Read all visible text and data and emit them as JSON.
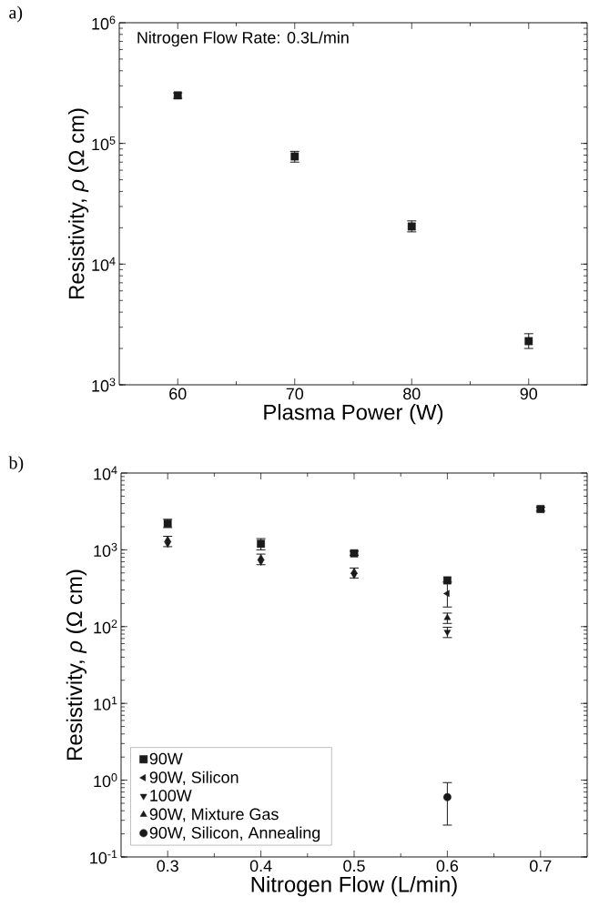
{
  "chart_data": [
    {
      "type": "scatter",
      "title": "a)",
      "xlabel": "Plasma Power (W)",
      "ylabel": "Resistivity, *ρ* (Ω cm)",
      "log": "y",
      "legend": false,
      "annotations": [
        "Nitrogen Flow Rate: 0.3L/min"
      ],
      "xlim": [
        55,
        95
      ],
      "xticks": [
        60,
        70,
        80,
        90
      ],
      "ylim": [
        1000,
        1000000
      ],
      "yticks": [
        {
          "value": 1000,
          "label": "10$^{3}$"
        },
        {
          "value": 10000,
          "label": "10$^{4}$"
        },
        {
          "value": 100000,
          "label": "10$^{5}$"
        },
        {
          "value": 1000000,
          "label": "10$^{6}$"
        }
      ],
      "x": [
        60,
        70,
        80,
        90
      ],
      "series": [
        {
          "color": "#1a1a1a",
          "marker": "square",
          "values": [
            250000,
            78000,
            20500,
            2300
          ],
          "errors": [
            [
              236000,
              262000
            ],
            [
              70000,
              86000
            ],
            [
              18500,
              22800
            ],
            [
              2000,
              2650
            ]
          ]
        }
      ]
    },
    {
      "type": "scatter",
      "title": "b)",
      "xlabel": "Nitrogen Flow (L/min)",
      "ylabel": "Resistivity, *ρ* (Ω cm)",
      "log": "y",
      "legend": "bottom left",
      "xlim": [
        0.25,
        0.75
      ],
      "xticks": [
        0.3,
        0.4,
        0.5,
        0.6,
        0.7
      ],
      "ylim": [
        0.1,
        10000
      ],
      "yticks": [
        {
          "value": 0.1,
          "label": "10$^{-1}$"
        },
        {
          "value": 1,
          "label": "10$^{0}$"
        },
        {
          "value": 10,
          "label": "10$^{1}$"
        },
        {
          "value": 100,
          "label": "10$^{2}$"
        },
        {
          "value": 1000,
          "label": "10$^{3}$"
        },
        {
          "value": 10000,
          "label": "10$^{4}$"
        }
      ],
      "x": [
        0.3,
        0.4,
        0.5,
        0.6,
        0.7
      ],
      "series": [
        {
          "name": "90W",
          "color": "#1a1a1a",
          "marker": "square",
          "values": [
            2200,
            1200,
            900,
            400,
            3400
          ],
          "errors": [
            [
              1950,
              2500
            ],
            [
              1000,
              1400
            ],
            [
              850,
              960
            ],
            null,
            [
              3200,
              3600
            ]
          ]
        },
        {
          "name": "90W, Silicon",
          "color": "#1a1a1a",
          "marker": "triangle-left",
          "values": [
            null,
            null,
            null,
            270,
            null
          ],
          "errors": [
            null,
            null,
            null,
            [
              180,
              380
            ],
            null
          ]
        },
        {
          "name": "100W",
          "color": "#1a1a1a",
          "marker": "triangle-down",
          "values": [
            1200,
            700,
            470,
            85,
            null
          ],
          "errors": [
            null,
            null,
            null,
            [
              72,
              98
            ],
            null
          ]
        },
        {
          "name": "90W, Mixture Gas",
          "color": "#1a1a1a",
          "marker": "triangle",
          "values": [
            1350,
            780,
            520,
            130,
            null
          ],
          "errors": [
            [
              1100,
              1500
            ],
            [
              640,
              880
            ],
            [
              430,
              580
            ],
            [
              110,
              150
            ],
            null
          ]
        },
        {
          "name": "90W, Silicon, Annealing",
          "color": "#1a1a1a",
          "marker": "circle",
          "values": [
            null,
            null,
            null,
            0.6,
            null
          ],
          "errors": [
            null,
            null,
            null,
            [
              0.26,
              0.93
            ],
            null
          ]
        }
      ]
    }
  ]
}
